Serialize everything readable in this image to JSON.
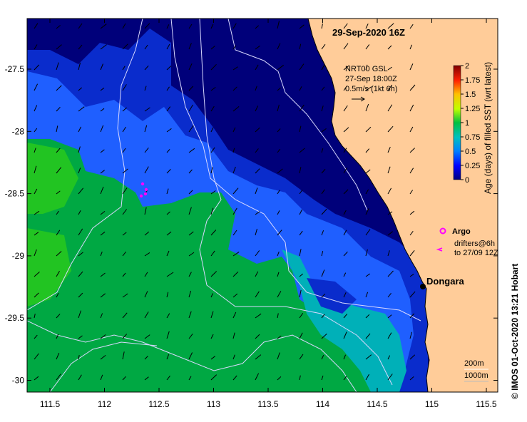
{
  "title": "29-Sep-2020 16Z",
  "current_legend": {
    "line1": "NRT00 GSL",
    "line2": "27-Sep 18:00Z",
    "line3": "0.5m/s (1kt 6h)"
  },
  "colorbar": {
    "label": "Age (days) of filled SST (wrt latest)",
    "ticks": [
      "2",
      "1.75",
      "1.5",
      "1.25",
      "1",
      "0.75",
      "0.5",
      "0.25",
      "0"
    ]
  },
  "argo_label": "Argo",
  "drifter_label_1": "drifters@6h",
  "drifter_label_2": "to 27/09 12Z",
  "place_label": "Dongara",
  "contours_label_1": "200m",
  "contours_label_2": "1000m",
  "credit": "© IMOS 01-Oct-2020 13:21 Hobart",
  "axes": {
    "x_ticks": [
      "111.5",
      "112",
      "112.5",
      "113",
      "113.5",
      "114",
      "114.5",
      "115",
      "115.5"
    ],
    "y_ticks": [
      "-27.5",
      "-28",
      "-28.5",
      "-29",
      "-29.5",
      "-30"
    ]
  },
  "colors": {
    "land": "#FFCC99",
    "age_0": "#000080",
    "age_0_25": "#0033cc",
    "age_0_5": "#1a66ff",
    "age_0_75": "#00b0c0",
    "age_1": "#00b050",
    "age_1_5": "#33cc33",
    "age_2": "#8b0000"
  },
  "markers": {
    "dongara": {
      "lon": 114.93,
      "lat": -29.25
    },
    "argo_floats": [
      {
        "lon": 112.33,
        "lat": -28.45
      },
      {
        "lon": 112.35,
        "lat": -28.53
      },
      {
        "lon": 112.3,
        "lat": -28.58
      },
      {
        "lon": 112.37,
        "lat": -28.62
      }
    ]
  }
}
